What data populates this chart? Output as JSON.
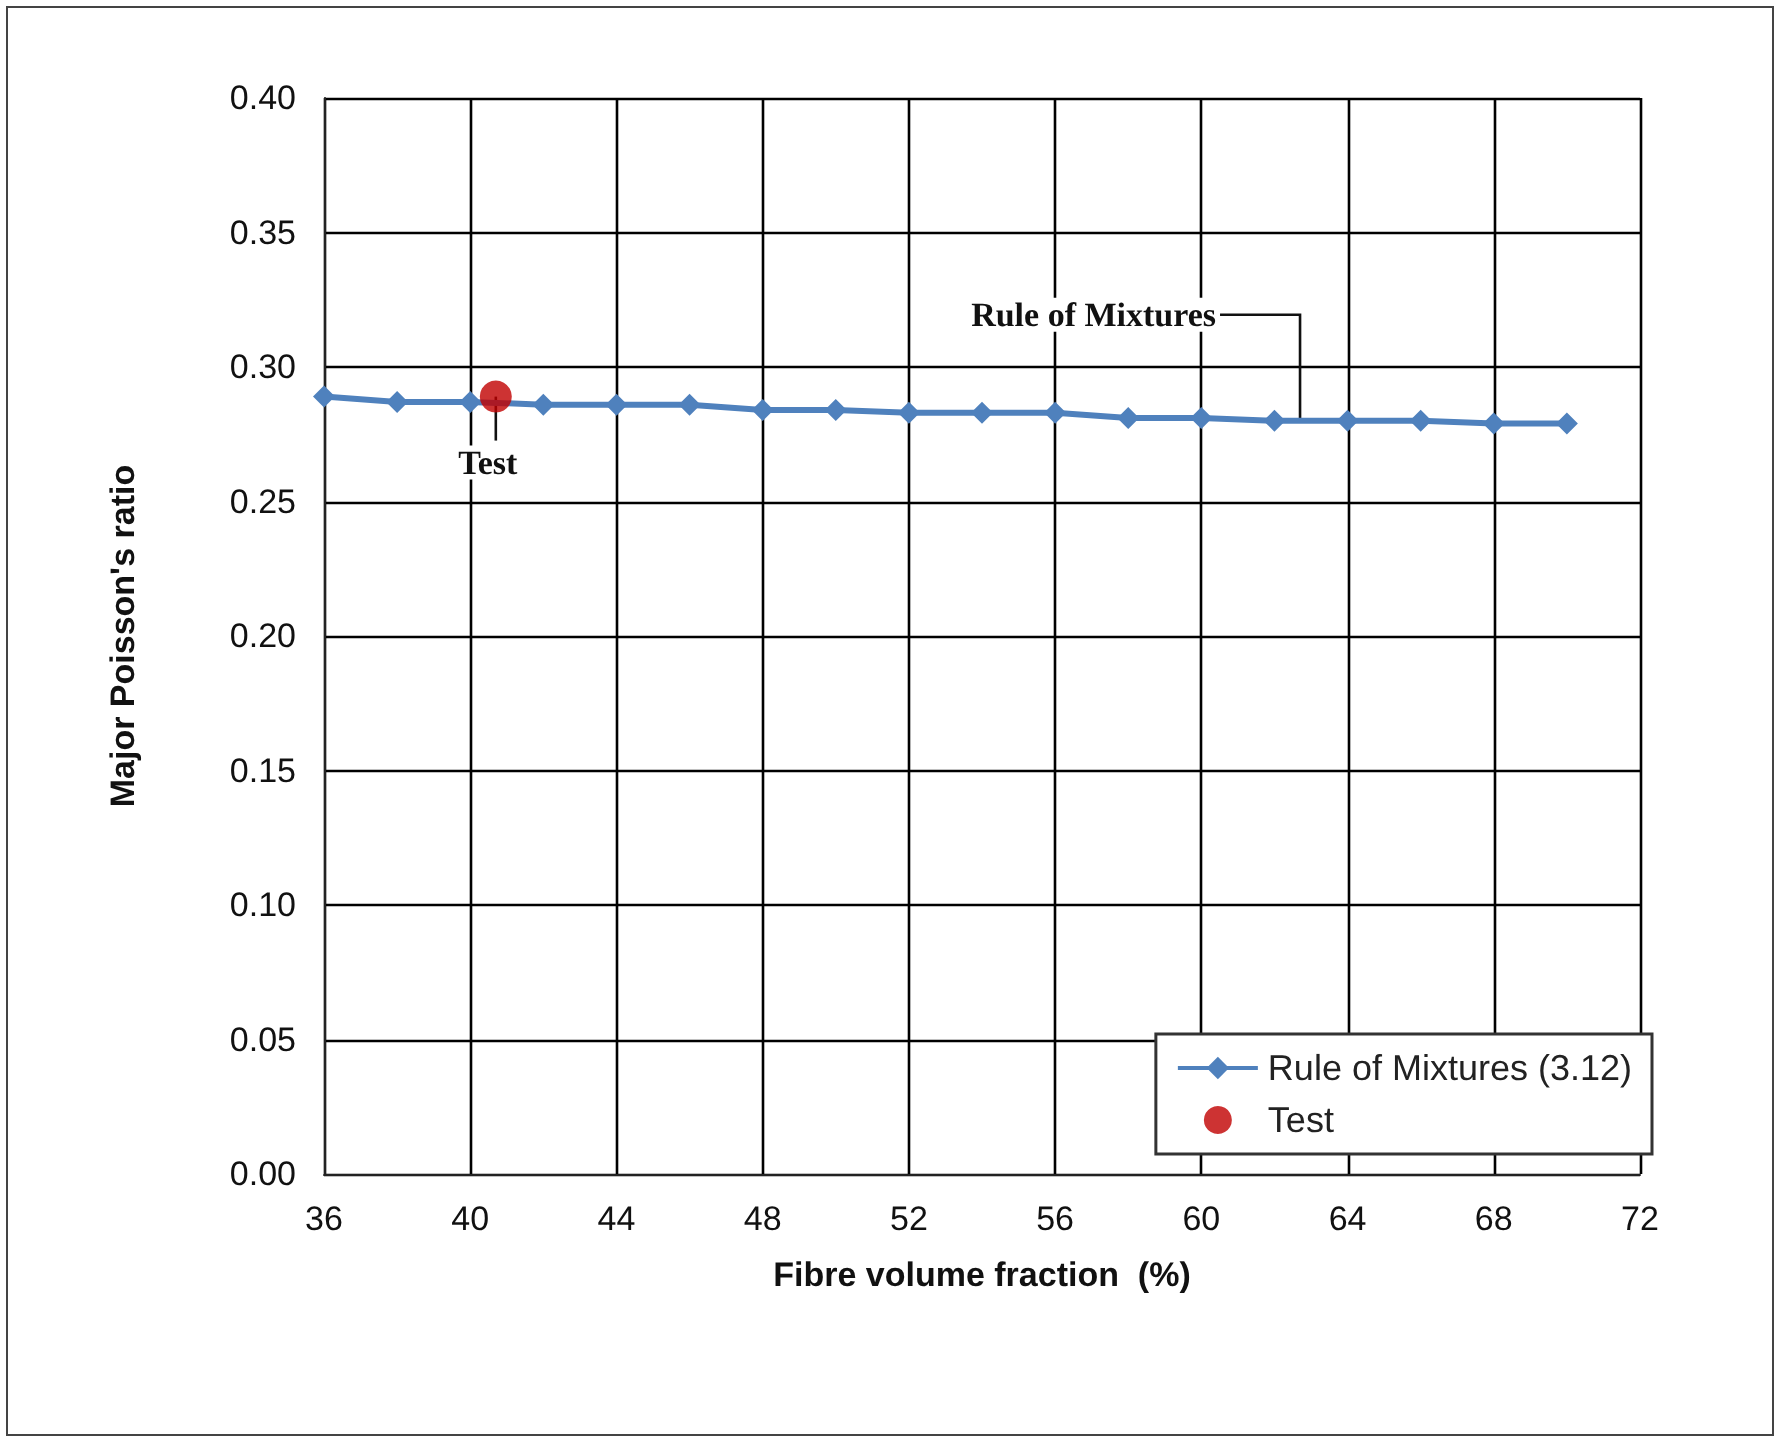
{
  "chart_data": {
    "type": "line",
    "xlabel": "Fibre volume fraction  (%)",
    "ylabel": "Major Poisson's ratio",
    "xlim": [
      36,
      72
    ],
    "xticks": [
      36,
      40,
      44,
      48,
      52,
      56,
      60,
      64,
      68,
      72
    ],
    "ylim": [
      0,
      0.4
    ],
    "yticks": [
      {
        "value": 0,
        "label": "0.00"
      },
      {
        "value": 0.05,
        "label": "0.05"
      },
      {
        "value": 0.1,
        "label": "0.10"
      },
      {
        "value": 0.15,
        "label": "0.15"
      },
      {
        "value": 0.2,
        "label": "0.20"
      },
      {
        "value": 0.25,
        "label": "0.25"
      },
      {
        "value": 0.3,
        "label": "0.30"
      },
      {
        "value": 0.35,
        "label": "0.35"
      },
      {
        "value": 0.4,
        "label": "0.40"
      }
    ],
    "grid": true,
    "legend": "bottom right",
    "series": [
      {
        "name": "Rule of Mixtures (3.12)",
        "color": "#4f81bd",
        "marker": "diamond",
        "x": [
          36,
          38,
          40,
          42,
          44,
          46,
          48,
          50,
          52,
          54,
          56,
          58,
          60,
          62,
          64,
          66,
          68,
          70
        ],
        "values": [
          0.289,
          0.287,
          0.287,
          0.286,
          0.286,
          0.286,
          0.284,
          0.284,
          0.283,
          0.283,
          0.283,
          0.281,
          0.281,
          0.28,
          0.28,
          0.28,
          0.279,
          0.279
        ]
      },
      {
        "name": "Test",
        "type": "scatter",
        "color": "#c00000",
        "marker": "circle",
        "x": [
          40.7
        ],
        "values": [
          0.289
        ]
      }
    ],
    "annotations": [
      {
        "text": "Rule of Mixtures",
        "x": 62.7,
        "y": 0.28
      },
      {
        "text": "Test",
        "x": 40.7,
        "y": 0.289
      }
    ]
  }
}
